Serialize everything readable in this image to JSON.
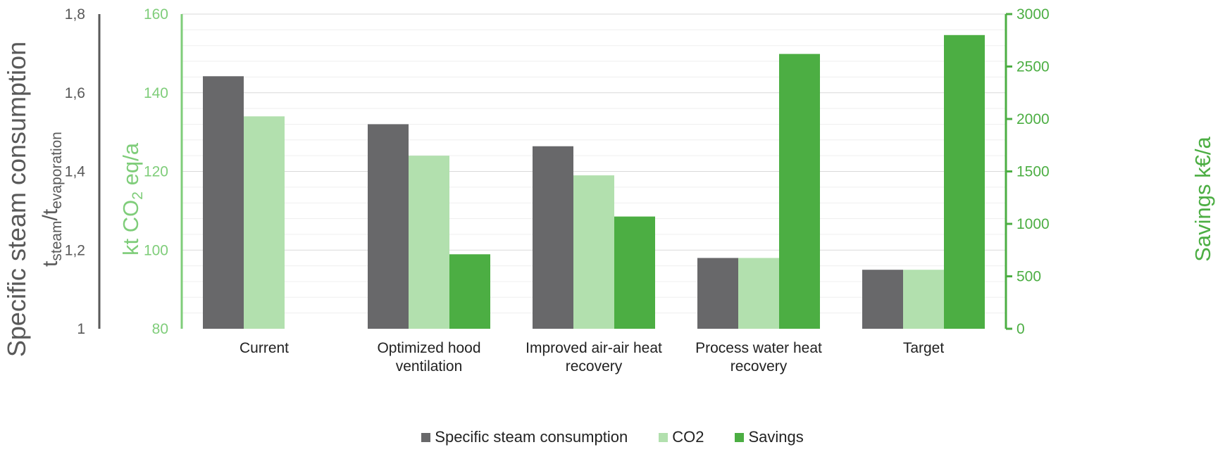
{
  "chart_data": {
    "type": "bar",
    "categories": [
      [
        "Current"
      ],
      [
        "Optimized hood",
        "ventilation"
      ],
      [
        "Improved air-air heat",
        "recovery"
      ],
      [
        "Process water heat",
        "recovery"
      ],
      [
        "Target"
      ]
    ],
    "series": [
      {
        "name": "Specific steam consumption",
        "axis": "left",
        "color": "#68686a",
        "values": [
          1.642,
          1.52,
          1.464,
          1.18,
          1.15
        ]
      },
      {
        "name": "CO2",
        "axis": "middle",
        "color": "#b2e0ae",
        "values": [
          134,
          124,
          119,
          98,
          95
        ]
      },
      {
        "name": "Savings",
        "axis": "right",
        "color": "#4cae43",
        "values": [
          null,
          710,
          1070,
          2620,
          2800
        ]
      }
    ],
    "axes": {
      "left": {
        "title_line1": "Specific steam consumption",
        "title_line2": {
          "t1": "t",
          "sub1": "steam",
          "slash": "/",
          "t2": "t",
          "sub2": "evaporation"
        },
        "ylim": [
          1,
          1.8
        ],
        "ticks": [
          "1",
          "1,2",
          "1,4",
          "1,6",
          "1,8"
        ],
        "color": "#595959"
      },
      "middle": {
        "title": {
          "pre": "kt CO",
          "sub": "2",
          "post": " eq/a"
        },
        "ylim": [
          80,
          160
        ],
        "ticks": [
          "80",
          "100",
          "120",
          "140",
          "160"
        ],
        "color": "#7fcd7a"
      },
      "right": {
        "title": "Savings k€/a",
        "ylim": [
          0,
          3000
        ],
        "ticks": [
          "0",
          "500",
          "1000",
          "1500",
          "2000",
          "2500",
          "3000"
        ],
        "color": "#4cae43"
      }
    },
    "grid": true,
    "legend_position": "bottom"
  }
}
